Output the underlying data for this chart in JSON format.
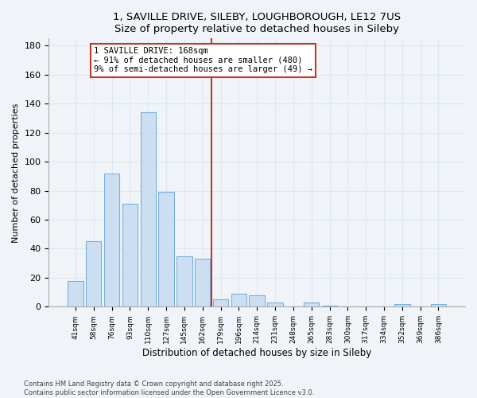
{
  "title1": "1, SAVILLE DRIVE, SILEBY, LOUGHBOROUGH, LE12 7US",
  "title2": "Size of property relative to detached houses in Sileby",
  "xlabel": "Distribution of detached houses by size in Sileby",
  "ylabel": "Number of detached properties",
  "bar_labels": [
    "41sqm",
    "58sqm",
    "76sqm",
    "93sqm",
    "110sqm",
    "127sqm",
    "145sqm",
    "162sqm",
    "179sqm",
    "196sqm",
    "214sqm",
    "231sqm",
    "248sqm",
    "265sqm",
    "283sqm",
    "300sqm",
    "317sqm",
    "334sqm",
    "352sqm",
    "369sqm",
    "386sqm"
  ],
  "bar_heights": [
    18,
    45,
    92,
    71,
    134,
    79,
    35,
    33,
    5,
    9,
    8,
    3,
    0,
    3,
    1,
    0,
    0,
    0,
    2,
    0,
    2
  ],
  "bar_color": "#ccdff2",
  "bar_edge_color": "#7ab0d8",
  "vline_x": 7.5,
  "vline_color": "#c0392b",
  "annotation_title": "1 SAVILLE DRIVE: 168sqm",
  "annotation_line1": "← 91% of detached houses are smaller (480)",
  "annotation_line2": "9% of semi-detached houses are larger (49) →",
  "annotation_box_color": "#c0392b",
  "ylim": [
    0,
    185
  ],
  "yticks": [
    0,
    20,
    40,
    60,
    80,
    100,
    120,
    140,
    160,
    180
  ],
  "footer1": "Contains HM Land Registry data © Crown copyright and database right 2025.",
  "footer2": "Contains public sector information licensed under the Open Government Licence v3.0.",
  "bg_color": "#f0f4f8",
  "grid_color": "#dce8f0"
}
